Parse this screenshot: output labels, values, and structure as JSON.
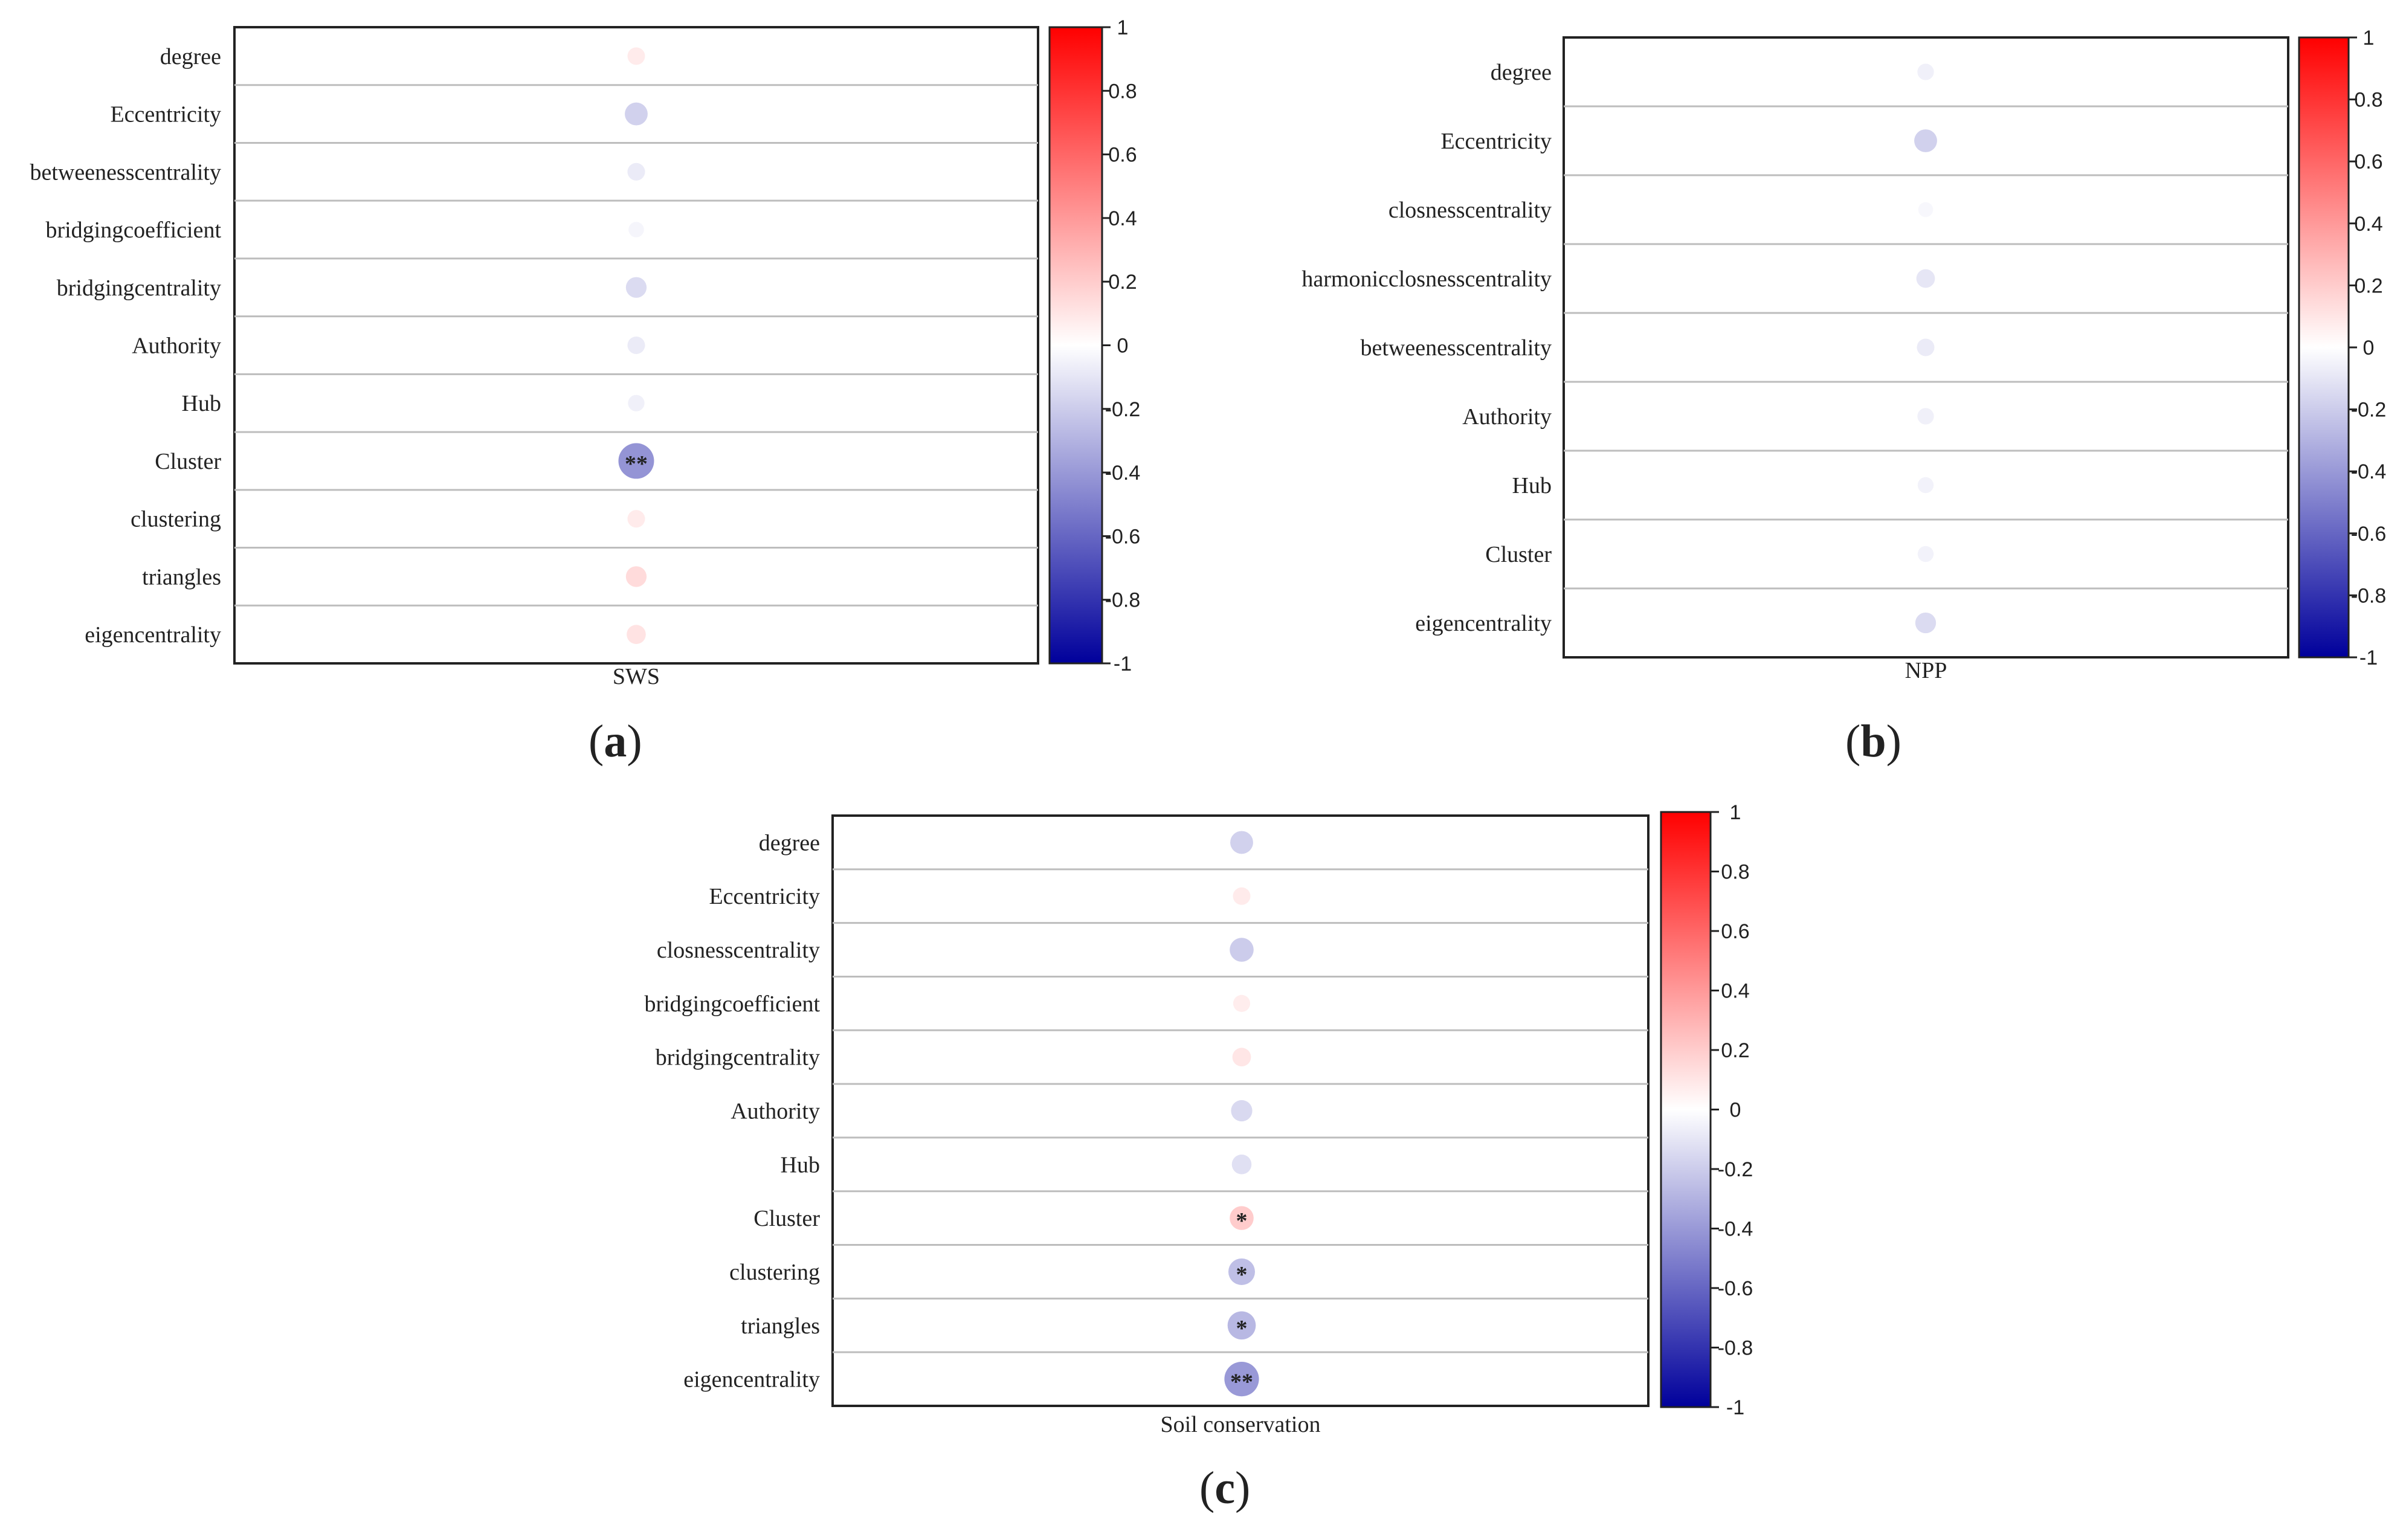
{
  "chart_data": [
    {
      "panel_label": "(a)",
      "type": "heatmap",
      "subtype": "correlation-bubble",
      "column": "SWS",
      "rows": [
        "degree",
        "Eccentricity",
        "betweenesscentrality",
        "bridgingcoefficient",
        "bridgingcentrality",
        "Authority",
        "Hub",
        "Cluster",
        "clustering",
        "triangles",
        "eigencentrality"
      ],
      "values": [
        0.08,
        -0.18,
        -0.08,
        -0.04,
        -0.14,
        -0.08,
        -0.06,
        -0.42,
        0.08,
        0.14,
        0.11
      ],
      "significance": [
        "",
        "",
        "",
        "",
        "",
        "",
        "",
        "**",
        "",
        "",
        ""
      ],
      "colorbar": {
        "min": -1,
        "max": 1,
        "ticks": [
          "1",
          "0.8",
          "0.6",
          "0.4",
          "0.2",
          "0",
          "-0.2",
          "-0.4",
          "-0.6",
          "-0.8",
          "-1"
        ]
      }
    },
    {
      "panel_label": "(b)",
      "type": "heatmap",
      "subtype": "correlation-bubble",
      "column": "NPP",
      "rows": [
        "degree",
        "Eccentricity",
        "closnesscentrality",
        "harmonicclosnesscentrality",
        "betweenesscentrality",
        "Authority",
        "Hub",
        "Cluster",
        "eigencentrality"
      ],
      "values": [
        -0.06,
        -0.18,
        -0.03,
        -0.1,
        -0.08,
        -0.06,
        -0.05,
        -0.05,
        -0.14
      ],
      "significance": [
        "",
        "",
        "",
        "",
        "",
        "",
        "",
        "",
        ""
      ],
      "colorbar": {
        "min": -1,
        "max": 1,
        "ticks": [
          "1",
          "0.8",
          "0.6",
          "0.4",
          "0.2",
          "0",
          "-0.2",
          "-0.4",
          "-0.6",
          "-0.8",
          "-1"
        ]
      }
    },
    {
      "panel_label": "(c)",
      "type": "heatmap",
      "subtype": "correlation-bubble",
      "column": "Soil conservation",
      "rows": [
        "degree",
        "Eccentricity",
        "closnesscentrality",
        "bridgingcoefficient",
        "bridgingcentrality",
        "Authority",
        "Hub",
        "Cluster",
        "clustering",
        "triangles",
        "eigencentrality"
      ],
      "values": [
        -0.18,
        0.08,
        -0.2,
        0.07,
        0.1,
        -0.15,
        -0.12,
        0.2,
        -0.25,
        -0.28,
        -0.4
      ],
      "significance": [
        "",
        "",
        "",
        "",
        "",
        "",
        "",
        "*",
        "*",
        "*",
        "**"
      ],
      "colorbar": {
        "min": -1,
        "max": 1,
        "ticks": [
          "1",
          "0.8",
          "0.6",
          "0.4",
          "0.2",
          "0",
          "-0.2",
          "-0.4",
          "-0.6",
          "-0.8",
          "-1"
        ]
      }
    }
  ]
}
